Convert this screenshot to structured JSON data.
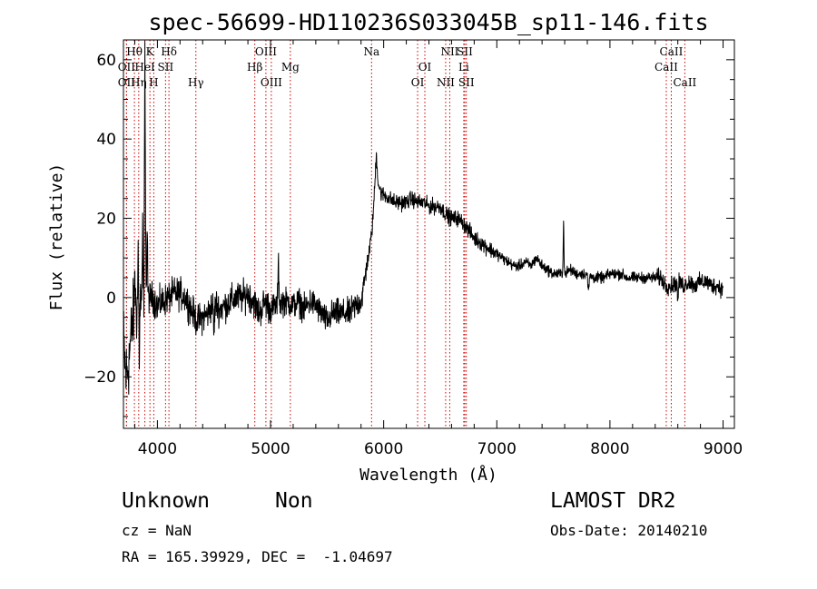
{
  "chart_data": {
    "type": "line",
    "title": "spec-56699-HD110236S033045B_sp11-146.fits",
    "xlabel": "Wavelength (Å)",
    "ylabel": "Flux (relative)",
    "xlim": [
      3700,
      9100
    ],
    "ylim": [
      -33,
      65
    ],
    "xticks": [
      4000,
      5000,
      6000,
      7000,
      8000,
      9000
    ],
    "yticks": [
      -20,
      0,
      20,
      40,
      60
    ],
    "grid": false,
    "legend": "none",
    "line_color": "#000000",
    "marker_color": "#cc0000",
    "series_knots": [
      [
        3700,
        -10
      ],
      [
        3720,
        -20
      ],
      [
        3740,
        -18
      ],
      [
        3760,
        -12
      ],
      [
        3780,
        -6
      ],
      [
        3800,
        -3
      ],
      [
        3830,
        -2
      ],
      [
        3860,
        0
      ],
      [
        3880,
        -1
      ],
      [
        3900,
        1
      ],
      [
        3930,
        0
      ],
      [
        3960,
        0
      ],
      [
        4000,
        -2
      ],
      [
        4050,
        -1
      ],
      [
        4100,
        0
      ],
      [
        4150,
        1
      ],
      [
        4200,
        1
      ],
      [
        4250,
        0
      ],
      [
        4300,
        -3
      ],
      [
        4350,
        -6
      ],
      [
        4400,
        -5
      ],
      [
        4450,
        -4
      ],
      [
        4500,
        -1
      ],
      [
        4550,
        -3
      ],
      [
        4600,
        -2
      ],
      [
        4650,
        -1
      ],
      [
        4700,
        0
      ],
      [
        4750,
        0
      ],
      [
        4800,
        1
      ],
      [
        4850,
        -1
      ],
      [
        4900,
        -4
      ],
      [
        4950,
        -1
      ],
      [
        5000,
        -3
      ],
      [
        5050,
        -2
      ],
      [
        5100,
        -1
      ],
      [
        5150,
        -1
      ],
      [
        5200,
        -2
      ],
      [
        5250,
        -1
      ],
      [
        5300,
        -3
      ],
      [
        5350,
        -1
      ],
      [
        5400,
        -2
      ],
      [
        5450,
        -4
      ],
      [
        5500,
        -6
      ],
      [
        5550,
        -4
      ],
      [
        5600,
        -4
      ],
      [
        5650,
        -4
      ],
      [
        5700,
        -4
      ],
      [
        5750,
        -2
      ],
      [
        5800,
        -1
      ],
      [
        5820,
        2
      ],
      [
        5850,
        8
      ],
      [
        5880,
        13
      ],
      [
        5900,
        18
      ],
      [
        5920,
        27
      ],
      [
        5935,
        30
      ],
      [
        5950,
        29
      ],
      [
        5980,
        26
      ],
      [
        6000,
        26
      ],
      [
        6050,
        25
      ],
      [
        6100,
        24
      ],
      [
        6150,
        24
      ],
      [
        6200,
        24
      ],
      [
        6250,
        25
      ],
      [
        6300,
        24
      ],
      [
        6350,
        24
      ],
      [
        6400,
        23
      ],
      [
        6450,
        23
      ],
      [
        6500,
        23
      ],
      [
        6550,
        21
      ],
      [
        6600,
        20
      ],
      [
        6650,
        20
      ],
      [
        6700,
        19
      ],
      [
        6750,
        17
      ],
      [
        6800,
        15
      ],
      [
        6850,
        14
      ],
      [
        6900,
        13
      ],
      [
        6950,
        12
      ],
      [
        7000,
        11
      ],
      [
        7050,
        10
      ],
      [
        7100,
        9
      ],
      [
        7150,
        8
      ],
      [
        7200,
        8
      ],
      [
        7250,
        9
      ],
      [
        7300,
        8
      ],
      [
        7350,
        10
      ],
      [
        7400,
        8
      ],
      [
        7450,
        7
      ],
      [
        7500,
        6
      ],
      [
        7550,
        6
      ],
      [
        7600,
        6
      ],
      [
        7650,
        7
      ],
      [
        7700,
        6
      ],
      [
        7750,
        6
      ],
      [
        7800,
        6
      ],
      [
        7850,
        5
      ],
      [
        7900,
        5
      ],
      [
        7950,
        5
      ],
      [
        8000,
        6
      ],
      [
        8050,
        6
      ],
      [
        8100,
        6
      ],
      [
        8150,
        5
      ],
      [
        8200,
        5
      ],
      [
        8250,
        5
      ],
      [
        8300,
        5
      ],
      [
        8350,
        5
      ],
      [
        8400,
        5
      ],
      [
        8450,
        5
      ],
      [
        8500,
        3
      ],
      [
        8550,
        3
      ],
      [
        8600,
        4
      ],
      [
        8650,
        3
      ],
      [
        8700,
        4
      ],
      [
        8750,
        3
      ],
      [
        8800,
        4
      ],
      [
        8850,
        4
      ],
      [
        8900,
        3
      ],
      [
        8950,
        3
      ],
      [
        9000,
        2
      ]
    ],
    "noise_regions": [
      {
        "from": 3700,
        "to": 3900,
        "amp": 9
      },
      {
        "from": 3900,
        "to": 5000,
        "amp": 4
      },
      {
        "from": 5000,
        "to": 5850,
        "amp": 3.5
      },
      {
        "from": 5850,
        "to": 7000,
        "amp": 2
      },
      {
        "from": 7000,
        "to": 8400,
        "amp": 1.4
      },
      {
        "from": 8400,
        "to": 9000,
        "amp": 2.2
      }
    ],
    "features": [
      {
        "x": 3800,
        "height": 12,
        "width": 4
      },
      {
        "x": 3830,
        "height": 14,
        "width": 4
      },
      {
        "x": 3840,
        "height": -12,
        "width": 5
      },
      {
        "x": 3870,
        "height": 18,
        "width": 3
      },
      {
        "x": 3890,
        "height": 58,
        "width": 6
      },
      {
        "x": 3910,
        "height": 18,
        "width": 4
      },
      {
        "x": 4500,
        "height": -8,
        "width": 6
      },
      {
        "x": 5070,
        "height": 10,
        "width": 6
      },
      {
        "x": 5935,
        "height": 6,
        "width": 10
      },
      {
        "x": 7590,
        "height": 13,
        "width": 5
      },
      {
        "x": 7810,
        "height": -4,
        "width": 8
      },
      {
        "x": 8600,
        "height": -5,
        "width": 6
      }
    ],
    "lines": [
      {
        "label": "Hθ",
        "x": 3797,
        "row": 0
      },
      {
        "label": "K",
        "x": 3934,
        "row": 0
      },
      {
        "label": "Hδ",
        "x": 4102,
        "row": 0
      },
      {
        "label": "OIII",
        "x": 4959,
        "row": 0
      },
      {
        "label": "Na",
        "x": 5893,
        "row": 0
      },
      {
        "label": "NII",
        "x": 6584,
        "row": 0
      },
      {
        "label": "SII",
        "x": 6717,
        "row": 0
      },
      {
        "label": "CaII",
        "x": 8542,
        "row": 0
      },
      {
        "label": "OII",
        "x": 3727,
        "row": 1
      },
      {
        "label": "HeI",
        "x": 3889,
        "row": 1
      },
      {
        "label": "SII",
        "x": 4072,
        "row": 1
      },
      {
        "label": "Hβ",
        "x": 4861,
        "row": 1
      },
      {
        "label": "Mg",
        "x": 5175,
        "row": 1
      },
      {
        "label": "OI",
        "x": 6364,
        "row": 1
      },
      {
        "label": "Li",
        "x": 6708,
        "row": 1
      },
      {
        "label": "CaII",
        "x": 8498,
        "row": 1
      },
      {
        "label": "OII",
        "x": 3727,
        "row": 2
      },
      {
        "label": "Hη",
        "x": 3835,
        "row": 2
      },
      {
        "label": "H",
        "x": 3968,
        "row": 2
      },
      {
        "label": "Hγ",
        "x": 4340,
        "row": 2
      },
      {
        "label": "OIII",
        "x": 5007,
        "row": 2
      },
      {
        "label": "OI",
        "x": 6300,
        "row": 2
      },
      {
        "label": "NII",
        "x": 6548,
        "row": 2
      },
      {
        "label": "SII",
        "x": 6731,
        "row": 2
      },
      {
        "label": "CaII",
        "x": 8662,
        "row": 2
      }
    ]
  },
  "info": {
    "object_class": "Unknown",
    "subclass": "Non",
    "cz": "cz = NaN",
    "coords": "RA = 165.39929, DEC =  -1.04697",
    "survey": "LAMOST DR2",
    "obs_date": "Obs-Date: 20140210"
  }
}
